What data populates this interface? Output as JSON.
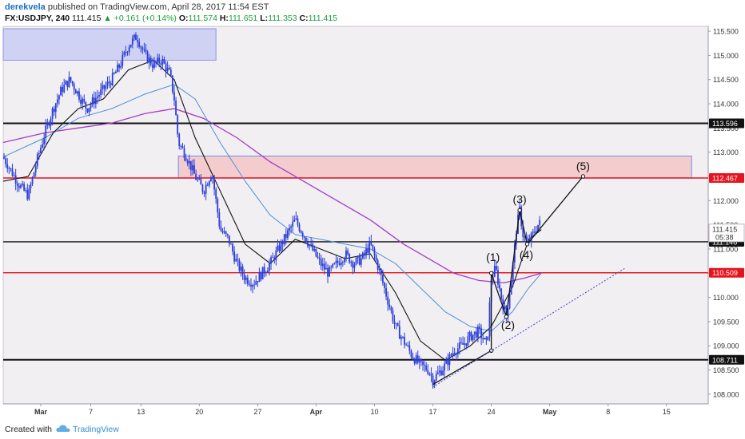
{
  "header": {
    "author": "derekvela",
    "published_text": "published on TradingView.com, April 28, 2017 11:54 EST",
    "symbol": "FX:USDJPY, 240",
    "last": "111.415",
    "change": "▲ +0.161 (+0.14%)",
    "open_label": "O:",
    "open": "111.574",
    "high_label": "H:",
    "high": "111.651",
    "low_label": "L:",
    "low": "111.353",
    "close_label": "C:",
    "close": "111.415"
  },
  "footer": {
    "created_label": "Created with",
    "brand": "TradingView"
  },
  "colors": {
    "candle": "#2b3fd9",
    "ma_fast": "#111111",
    "ma_mid": "#4a90d9",
    "ma_slow": "#a23cc9",
    "level_red": "#e5141e",
    "zone_red": "#f5c6c8",
    "zone_blue": "#c9ccf2",
    "bg": "#f1eff2"
  },
  "chart_data": {
    "type": "candlestick",
    "symbol": "USDJPY",
    "timeframe": "240",
    "ylim": [
      107.8,
      115.6
    ],
    "y_ticks": [
      "108.000",
      "108.500",
      "109.000",
      "109.500",
      "110.000",
      "110.500",
      "111.000",
      "111.500",
      "112.000",
      "112.500",
      "113.000",
      "113.500",
      "114.000",
      "114.500",
      "115.000",
      "115.500"
    ],
    "x_ticks": [
      {
        "label": "Mar",
        "bold": true
      },
      {
        "label": "7",
        "bold": false
      },
      {
        "label": "13",
        "bold": false
      },
      {
        "label": "20",
        "bold": false
      },
      {
        "label": "27",
        "bold": false
      },
      {
        "label": "Apr",
        "bold": true
      },
      {
        "label": "10",
        "bold": false
      },
      {
        "label": "17",
        "bold": false
      },
      {
        "label": "24",
        "bold": false
      },
      {
        "label": "May",
        "bold": true
      },
      {
        "label": "8",
        "bold": false
      },
      {
        "label": "15",
        "bold": false
      }
    ],
    "x_tick_positions": [
      0,
      6,
      12,
      19,
      26,
      33,
      40,
      47,
      54,
      61,
      68,
      75
    ],
    "x_range": [
      -4.5,
      80
    ],
    "price_path": [
      [
        -4.5,
        112.9
      ],
      [
        -3.5,
        112.6
      ],
      [
        -2.5,
        112.3
      ],
      [
        -1.5,
        112.1
      ],
      [
        -0.5,
        112.8
      ],
      [
        0.5,
        113.4
      ],
      [
        1.5,
        113.9
      ],
      [
        2.5,
        114.3
      ],
      [
        3.5,
        114.5
      ],
      [
        4.5,
        114.2
      ],
      [
        5.5,
        113.9
      ],
      [
        6.5,
        114.1
      ],
      [
        7.5,
        114.3
      ],
      [
        8.5,
        114.5
      ],
      [
        9.5,
        114.8
      ],
      [
        10.5,
        115.2
      ],
      [
        11.5,
        115.4
      ],
      [
        12.5,
        115.0
      ],
      [
        13.5,
        114.8
      ],
      [
        14.5,
        114.9
      ],
      [
        15.5,
        114.6
      ],
      [
        16,
        114.1
      ],
      [
        16.5,
        113.2
      ],
      [
        17.5,
        112.9
      ],
      [
        18.5,
        112.5
      ],
      [
        19.5,
        112.2
      ],
      [
        20.5,
        112.6
      ],
      [
        21.5,
        111.4
      ],
      [
        22.5,
        111.2
      ],
      [
        23.5,
        110.7
      ],
      [
        24.5,
        110.4
      ],
      [
        25.5,
        110.3
      ],
      [
        26.5,
        110.5
      ],
      [
        27.5,
        110.7
      ],
      [
        28.5,
        111.0
      ],
      [
        29.5,
        111.3
      ],
      [
        30.5,
        111.6
      ],
      [
        31.5,
        111.3
      ],
      [
        32.5,
        111.0
      ],
      [
        33.5,
        110.7
      ],
      [
        34.5,
        110.5
      ],
      [
        35.5,
        110.7
      ],
      [
        36.5,
        110.9
      ],
      [
        37.5,
        110.7
      ],
      [
        38.5,
        110.8
      ],
      [
        39.5,
        111.1
      ],
      [
        40.5,
        110.6
      ],
      [
        41.5,
        110.0
      ],
      [
        42.5,
        109.4
      ],
      [
        43.5,
        109.1
      ],
      [
        44.5,
        108.8
      ],
      [
        45.5,
        108.6
      ],
      [
        46.5,
        108.5
      ],
      [
        47,
        108.3
      ],
      [
        47.5,
        108.4
      ],
      [
        48.5,
        108.6
      ],
      [
        49.5,
        108.9
      ],
      [
        50.5,
        109.0
      ],
      [
        51.5,
        109.2
      ],
      [
        52.5,
        109.3
      ],
      [
        53.5,
        109.0
      ],
      [
        54,
        110.4
      ],
      [
        54.5,
        110.6
      ],
      [
        55.2,
        110.0
      ],
      [
        55.8,
        109.6
      ],
      [
        56.5,
        110.5
      ],
      [
        57,
        111.4
      ],
      [
        57.4,
        111.8
      ],
      [
        57.8,
        111.3
      ],
      [
        58.3,
        111.1
      ],
      [
        59,
        111.3
      ],
      [
        59.6,
        111.5
      ],
      [
        60,
        111.55
      ]
    ],
    "ma_fast": [
      [
        -4.5,
        112.4
      ],
      [
        -1.5,
        112.5
      ],
      [
        1.5,
        113.4
      ],
      [
        4.5,
        113.9
      ],
      [
        7.5,
        114.1
      ],
      [
        10.5,
        114.7
      ],
      [
        13.5,
        114.9
      ],
      [
        16,
        114.5
      ],
      [
        18.5,
        113.3
      ],
      [
        21.5,
        112.2
      ],
      [
        24.5,
        111.1
      ],
      [
        27.5,
        110.7
      ],
      [
        30.5,
        111.2
      ],
      [
        33.5,
        111.0
      ],
      [
        36.5,
        110.8
      ],
      [
        39.5,
        110.9
      ],
      [
        42.5,
        110.1
      ],
      [
        45.5,
        109.1
      ],
      [
        48.5,
        108.7
      ],
      [
        51.5,
        109.0
      ],
      [
        54,
        109.4
      ],
      [
        56.5,
        110.2
      ],
      [
        58.5,
        111.2
      ],
      [
        60,
        111.4
      ]
    ],
    "ma_mid": [
      [
        -4.5,
        112.9
      ],
      [
        0.5,
        113.3
      ],
      [
        4.5,
        113.7
      ],
      [
        8.5,
        113.9
      ],
      [
        12.5,
        114.2
      ],
      [
        16,
        114.4
      ],
      [
        18.5,
        114.1
      ],
      [
        21.5,
        113.2
      ],
      [
        24.5,
        112.4
      ],
      [
        27.5,
        111.7
      ],
      [
        30.5,
        111.3
      ],
      [
        33.5,
        111.2
      ],
      [
        36.5,
        111.1
      ],
      [
        39.5,
        111.0
      ],
      [
        42.5,
        110.7
      ],
      [
        45.5,
        110.2
      ],
      [
        48.5,
        109.7
      ],
      [
        51.5,
        109.4
      ],
      [
        54,
        109.3
      ],
      [
        56.5,
        109.7
      ],
      [
        58.5,
        110.2
      ],
      [
        60,
        110.5
      ]
    ],
    "ma_slow": [
      [
        -4.5,
        113.2
      ],
      [
        0.5,
        113.4
      ],
      [
        4.5,
        113.5
      ],
      [
        8.5,
        113.6
      ],
      [
        12.5,
        113.8
      ],
      [
        16,
        113.9
      ],
      [
        19.5,
        113.7
      ],
      [
        23.5,
        113.3
      ],
      [
        27.5,
        112.8
      ],
      [
        31.5,
        112.4
      ],
      [
        35.5,
        112.0
      ],
      [
        39.5,
        111.6
      ],
      [
        43.5,
        111.1
      ],
      [
        46.5,
        110.8
      ],
      [
        49.5,
        110.5
      ],
      [
        52.5,
        110.35
      ],
      [
        55.5,
        110.3
      ],
      [
        58,
        110.4
      ],
      [
        60,
        110.5
      ]
    ],
    "horizontal_levels": [
      {
        "value": 113.596,
        "label": "113.596",
        "color": "#111111",
        "bold": true
      },
      {
        "value": 112.467,
        "label": "112.467",
        "color": "#e5141e",
        "bold": false
      },
      {
        "value": 111.148,
        "label": "111.148",
        "color": "#111111",
        "bold": false
      },
      {
        "value": 110.509,
        "label": "110.509",
        "color": "#e5141e",
        "bold": false
      },
      {
        "value": 108.711,
        "label": "108.711",
        "color": "#111111",
        "bold": true
      }
    ],
    "current_price": {
      "value": 111.415,
      "label": "111.415",
      "countdown": "05:38"
    },
    "zones": [
      {
        "type": "blue",
        "x1": -4.5,
        "x2": 21,
        "y1": 115.55,
        "y2": 114.9
      },
      {
        "type": "red",
        "x1": 16.5,
        "x2": 78,
        "y1": 112.92,
        "y2": 112.47
      }
    ],
    "red_segment": {
      "x1": 45.5,
      "x2": 80,
      "y": 110.509
    },
    "wave_labels": [
      {
        "text": "(1)",
        "x": 54.2,
        "y": 110.75
      },
      {
        "text": "(2)",
        "x": 56.0,
        "y": 109.35
      },
      {
        "text": "(3)",
        "x": 57.4,
        "y": 111.95
      },
      {
        "text": "(4)",
        "x": 58.2,
        "y": 110.8
      },
      {
        "text": "(5)",
        "x": 65.0,
        "y": 112.63
      }
    ],
    "wave_path": [
      [
        47.0,
        108.2
      ],
      [
        54.0,
        108.9
      ],
      [
        54.0,
        110.5
      ],
      [
        55.8,
        109.6
      ],
      [
        57.4,
        111.8
      ],
      [
        58.3,
        111.1
      ],
      [
        65.0,
        112.5
      ]
    ],
    "trendline": [
      [
        47.0,
        108.15
      ],
      [
        70.0,
        110.6
      ]
    ]
  }
}
